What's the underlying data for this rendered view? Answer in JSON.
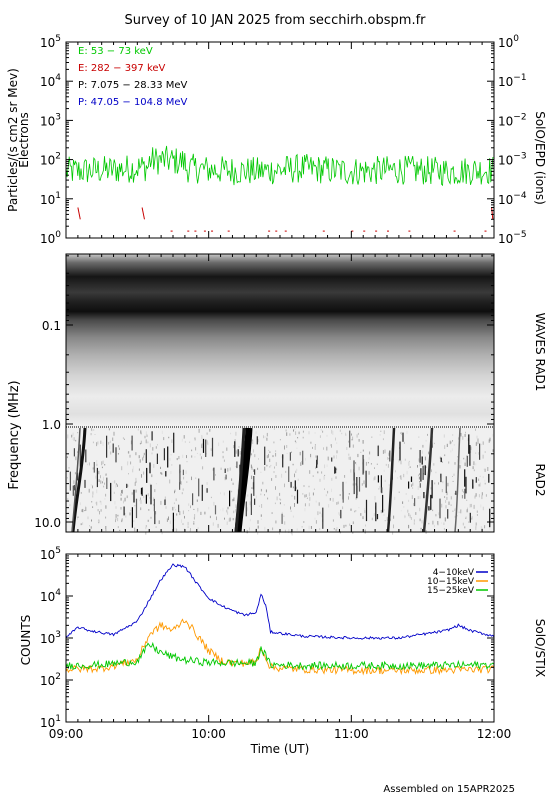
{
  "title": "Survey of 10 JAN 2025 from secchirh.obspm.fr",
  "footer": "Assembled on 15APR2025",
  "x_axis": {
    "label": "Time (UT)",
    "ticks": [
      "09:00",
      "10:00",
      "11:00",
      "12:00"
    ]
  },
  "panel_particles": {
    "ylabel_line1": "Particles/(s cm2 sr Mev)",
    "ylabel_line2": "Electrons",
    "right_label": "SolO/EPD (ions)",
    "left_ticks": [
      {
        "base": "10",
        "exp": "5"
      },
      {
        "base": "10",
        "exp": "4"
      },
      {
        "base": "10",
        "exp": "3"
      },
      {
        "base": "10",
        "exp": "2"
      },
      {
        "base": "10",
        "exp": "1"
      },
      {
        "base": "10",
        "exp": "0"
      }
    ],
    "right_ticks": [
      {
        "base": "10",
        "exp": "0"
      },
      {
        "base": "10",
        "exp": "−1"
      },
      {
        "base": "10",
        "exp": "−2"
      },
      {
        "base": "10",
        "exp": "−3"
      },
      {
        "base": "10",
        "exp": "−4"
      },
      {
        "base": "10",
        "exp": "−5"
      }
    ],
    "legend": [
      {
        "label": "E: 53 − 73 keV",
        "color": "#00c800"
      },
      {
        "label": "E: 282 − 397 keV",
        "color": "#c80000"
      },
      {
        "label": "P: 7.075 − 28.33 MeV",
        "color": "#000000"
      },
      {
        "label": "P: 47.05 − 104.8 MeV",
        "color": "#0000c8"
      }
    ]
  },
  "panel_waves": {
    "ylabel": "Frequency (MHz)",
    "right_label_top": "WAVES RAD1",
    "right_label_bottom": "RAD2",
    "ticks": [
      "0.1",
      "1.0",
      "10.0"
    ]
  },
  "panel_stix": {
    "ylabel": "COUNTS",
    "right_label": "SolO/STIX",
    "ticks": [
      {
        "base": "10",
        "exp": "5"
      },
      {
        "base": "10",
        "exp": "4"
      },
      {
        "base": "10",
        "exp": "3"
      },
      {
        "base": "10",
        "exp": "2"
      },
      {
        "base": "10",
        "exp": "1"
      }
    ],
    "legend": [
      {
        "label": "4−10keV",
        "color": "#0000c8"
      },
      {
        "label": "10−15keV",
        "color": "#ff9900"
      },
      {
        "label": "15−25keV",
        "color": "#00c800"
      }
    ]
  },
  "chart_data": [
    {
      "type": "line",
      "x_range": [
        "09:00",
        "12:00"
      ],
      "y_scale": "log",
      "ylim": [
        1,
        100000
      ],
      "series": [
        {
          "name": "E: 53 − 73 keV",
          "color": "#00c800",
          "x": [
            "09:00",
            "09:20",
            "09:40",
            "10:00",
            "10:20",
            "10:40",
            "11:00",
            "11:20",
            "11:40",
            "12:00"
          ],
          "values": [
            50,
            55,
            70,
            55,
            50,
            60,
            50,
            55,
            50,
            55
          ]
        },
        {
          "name": "E: 282 − 397 keV",
          "color": "#c80000",
          "x": [
            "09:08",
            "09:35",
            "09:55",
            "10:20",
            "10:45",
            "11:00",
            "11:15",
            "11:30",
            "12:00"
          ],
          "values": [
            5,
            4,
            1.5,
            1.5,
            1.5,
            1.5,
            1.5,
            1.5,
            5
          ]
        }
      ]
    },
    {
      "type": "heatmap",
      "x_range": [
        "09:00",
        "12:00"
      ],
      "y_scale": "log",
      "ylim_mhz": [
        0.02,
        14
      ]
    },
    {
      "type": "line",
      "x_range": [
        "09:00",
        "12:00"
      ],
      "y_scale": "log",
      "ylim": [
        10,
        100000
      ],
      "series": [
        {
          "name": "4−10keV",
          "color": "#0000c8",
          "x": [
            "09:00",
            "09:05",
            "09:10",
            "09:20",
            "09:30",
            "09:35",
            "09:40",
            "09:45",
            "09:50",
            "09:55",
            "10:00",
            "10:05",
            "10:10",
            "10:15",
            "10:20",
            "10:22",
            "10:24",
            "10:26",
            "10:30",
            "10:40",
            "11:00",
            "11:20",
            "11:40",
            "11:45",
            "11:50",
            "12:00"
          ],
          "values": [
            1000,
            1800,
            1500,
            1200,
            2500,
            8000,
            25000,
            55000,
            50000,
            20000,
            9000,
            6000,
            4500,
            3500,
            4000,
            11000,
            6000,
            1400,
            1300,
            1100,
            1000,
            1000,
            1500,
            2000,
            1500,
            1100
          ]
        },
        {
          "name": "10−15keV",
          "color": "#ff9900",
          "x": [
            "09:00",
            "09:15",
            "09:30",
            "09:35",
            "09:40",
            "09:45",
            "09:50",
            "09:55",
            "10:00",
            "10:05",
            "10:10",
            "10:20",
            "10:22",
            "10:26",
            "10:40",
            "11:00",
            "11:30",
            "12:00"
          ],
          "values": [
            180,
            190,
            300,
            1200,
            2000,
            1500,
            2800,
            1200,
            500,
            300,
            250,
            260,
            600,
            200,
            180,
            170,
            170,
            180
          ]
        },
        {
          "name": "15−25keV",
          "color": "#00c800",
          "x": [
            "09:00",
            "09:15",
            "09:30",
            "09:35",
            "09:40",
            "09:45",
            "09:50",
            "10:00",
            "10:20",
            "10:22",
            "10:26",
            "10:40",
            "11:00",
            "11:30",
            "12:00"
          ],
          "values": [
            220,
            230,
            280,
            700,
            450,
            350,
            300,
            260,
            250,
            600,
            230,
            220,
            220,
            220,
            230
          ]
        }
      ]
    }
  ]
}
